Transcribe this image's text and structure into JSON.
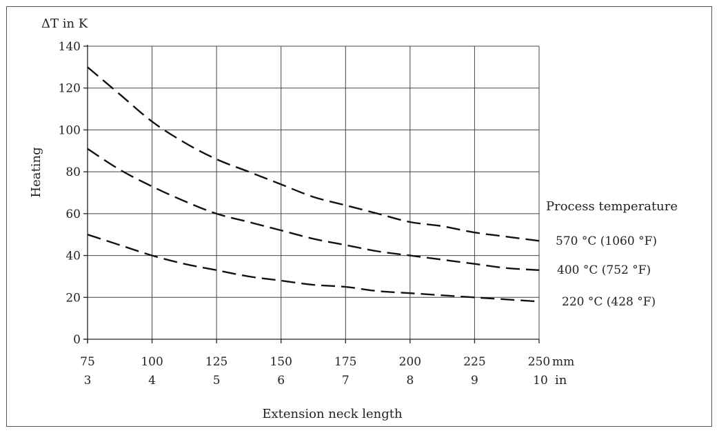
{
  "chart_data": {
    "type": "line",
    "title": "",
    "xlabel": "Extension neck length",
    "ylabel": "Heating",
    "y_unit_label": "ΔT in K",
    "x_unit_primary": "mm",
    "x_unit_secondary": "in",
    "xlim": [
      75,
      250
    ],
    "ylim": [
      0,
      140
    ],
    "x_ticks": [
      75,
      100,
      125,
      150,
      175,
      200,
      225,
      250
    ],
    "x_tick_labels_mm": [
      "75",
      "100",
      "125",
      "150",
      "175",
      "200",
      "225",
      "250"
    ],
    "x_tick_labels_in": [
      "3",
      "4",
      "5",
      "6",
      "7",
      "8",
      "9",
      "10"
    ],
    "y_ticks": [
      0,
      20,
      40,
      60,
      80,
      100,
      120,
      140
    ],
    "y_tick_labels": [
      "0",
      "20",
      "40",
      "60",
      "80",
      "100",
      "120",
      "140"
    ],
    "grid": true,
    "legend_title": "Process temperature",
    "legend_placement": "right",
    "series": [
      {
        "name": "570 °C (1060 °F)",
        "x": [
          75,
          87.5,
          100,
          112.5,
          125,
          137.5,
          150,
          162.5,
          175,
          187.5,
          200,
          212.5,
          225,
          237.5,
          250
        ],
        "y": [
          130,
          117,
          104,
          94,
          86,
          80,
          74,
          68,
          64,
          60,
          56,
          54,
          51,
          49,
          47
        ]
      },
      {
        "name": "400 °C (752 °F)",
        "x": [
          75,
          87.5,
          100,
          112.5,
          125,
          137.5,
          150,
          162.5,
          175,
          187.5,
          200,
          212.5,
          225,
          237.5,
          250
        ],
        "y": [
          91,
          81,
          73,
          66,
          60,
          56,
          52,
          48,
          45,
          42,
          40,
          38,
          36,
          34,
          33
        ]
      },
      {
        "name": "220 °C (428 °F)",
        "x": [
          75,
          87.5,
          100,
          112.5,
          125,
          137.5,
          150,
          162.5,
          175,
          187.5,
          200,
          212.5,
          225,
          237.5,
          250
        ],
        "y": [
          50,
          45,
          40,
          36,
          33,
          30,
          28,
          26,
          25,
          23,
          22,
          21,
          20,
          19,
          18
        ]
      }
    ]
  }
}
